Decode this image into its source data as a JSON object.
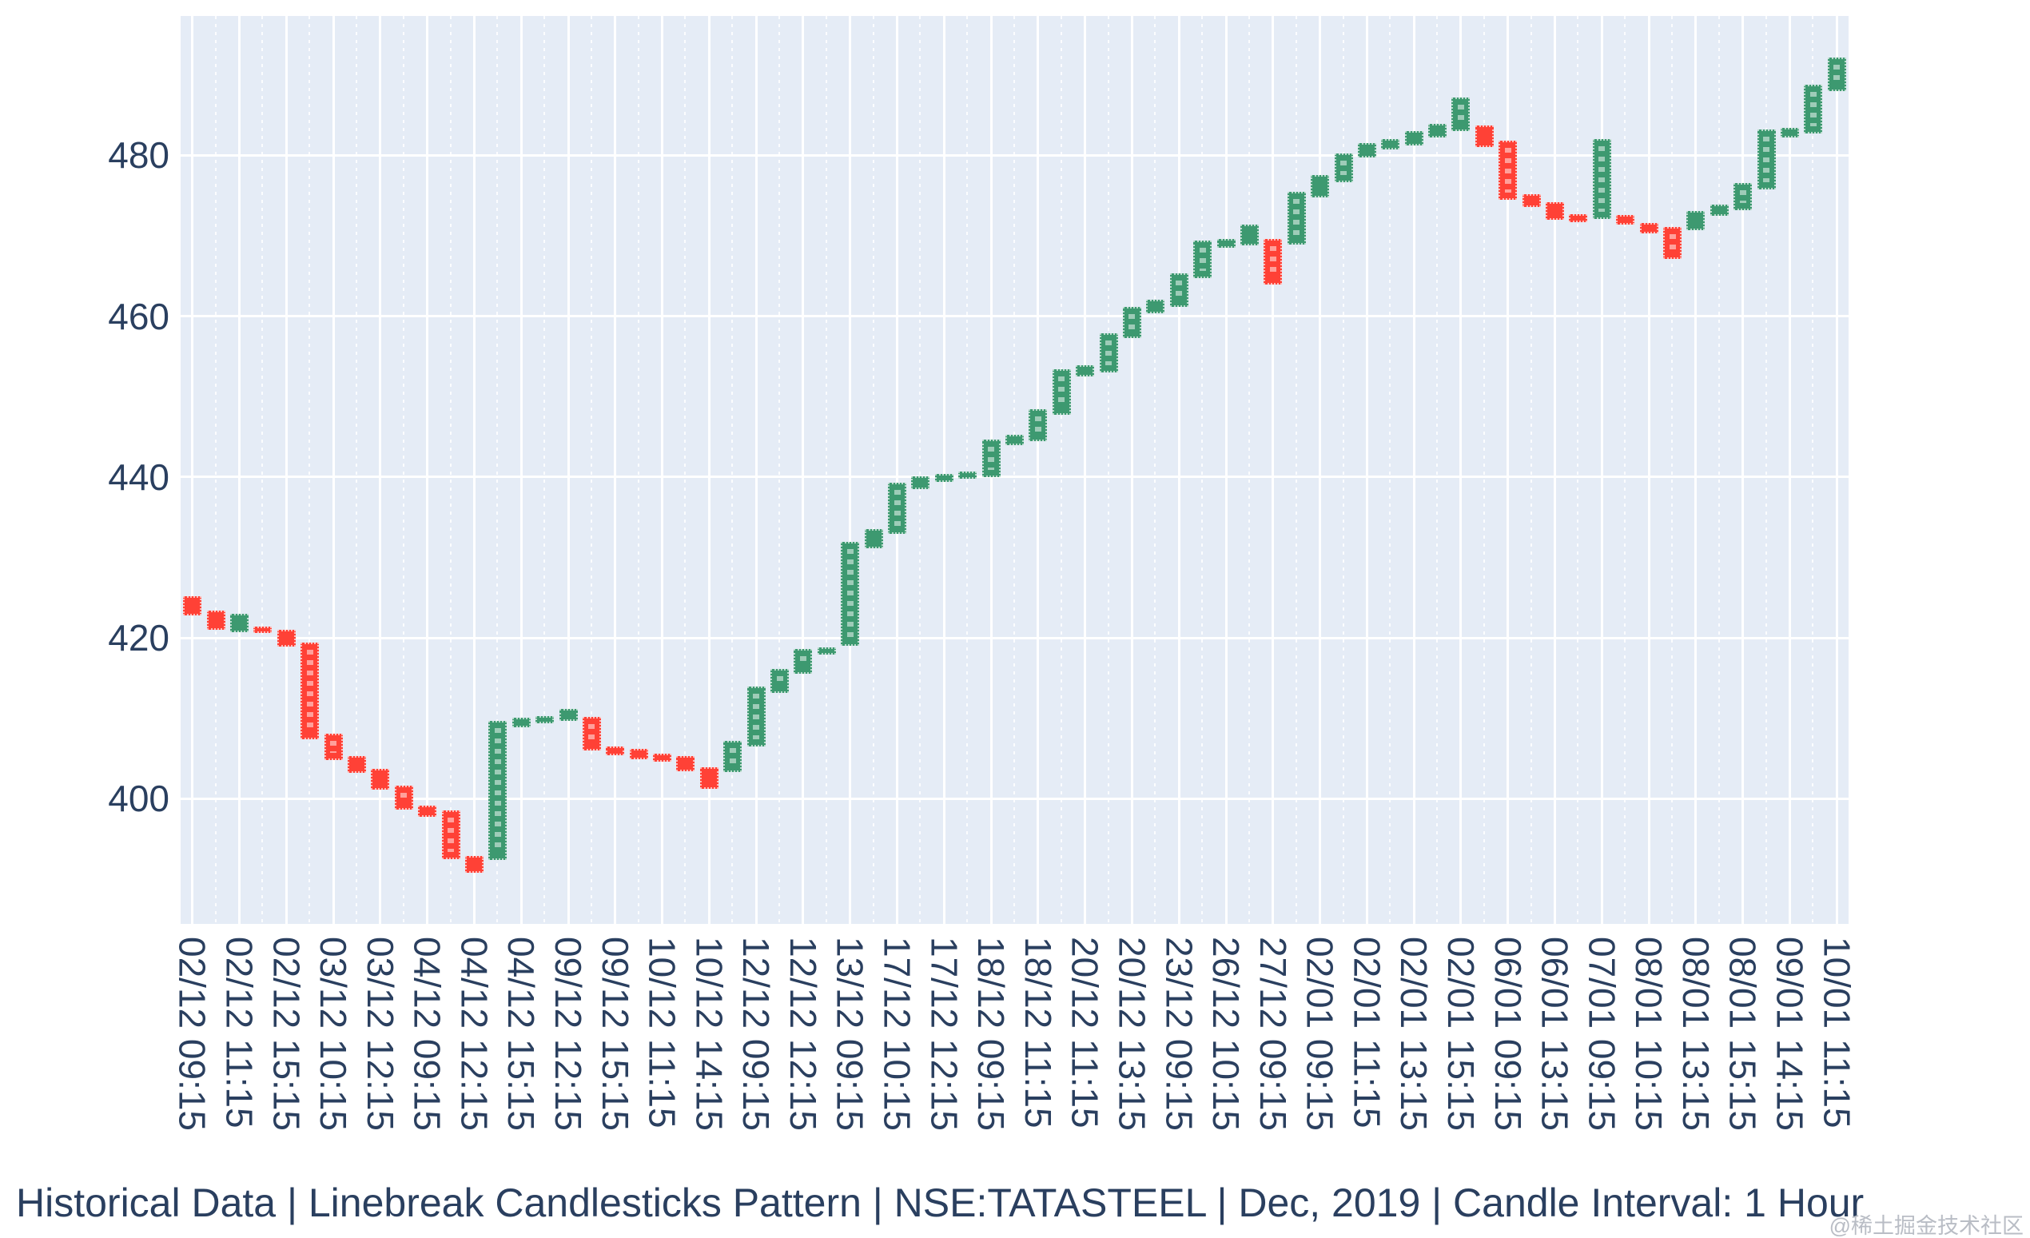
{
  "title": "Historical Data | Linebreak Candlesticks Pattern | NSE:TATASTEEL | Dec, 2019 | Candle Interval: 1 Hour",
  "watermark": "@稀土掘金技术社区",
  "colors": {
    "up": "#3D9970",
    "down": "#FF4136",
    "plot_bg": "#E5ECF6",
    "grid": "#ffffff",
    "text": "#2a3f5f",
    "watermark": "#b9bdc5"
  },
  "y_axis": {
    "ticks": [
      400,
      420,
      440,
      460,
      480
    ]
  },
  "x_axis": {
    "labels": [
      "02/12 09:15",
      "02/12 11:15",
      "02/12 15:15",
      "03/12 10:15",
      "03/12 12:15",
      "04/12 09:15",
      "04/12 12:15",
      "04/12 15:15",
      "09/12 12:15",
      "09/12 15:15",
      "10/12 11:15",
      "10/12 14:15",
      "12/12 09:15",
      "12/12 12:15",
      "13/12 09:15",
      "17/12 10:15",
      "17/12 12:15",
      "18/12 09:15",
      "18/12 11:15",
      "20/12 11:15",
      "20/12 13:15",
      "23/12 09:15",
      "26/12 10:15",
      "27/12 09:15",
      "02/01 09:15",
      "02/01 11:15",
      "02/01 13:15",
      "02/01 15:15",
      "06/01 09:15",
      "06/01 13:15",
      "07/01 09:15",
      "08/01 10:15",
      "08/01 13:15",
      "08/01 15:15",
      "09/01 14:15",
      "10/01 11:15"
    ]
  },
  "chart_data": {
    "type": "candlestick-linebreak",
    "title": "Historical Data | Linebreak Candlesticks Pattern | NSE:TATASTEEL | Dec, 2019 | Candle Interval: 1 Hour",
    "ylim": [
      385,
      497.5
    ],
    "grid": true,
    "label_every_n_candles": 2,
    "tick_labels": [
      "02/12 09:15",
      "02/12 11:15",
      "02/12 15:15",
      "03/12 10:15",
      "03/12 12:15",
      "04/12 09:15",
      "04/12 12:15",
      "04/12 15:15",
      "09/12 12:15",
      "09/12 15:15",
      "10/12 11:15",
      "10/12 14:15",
      "12/12 09:15",
      "12/12 12:15",
      "13/12 09:15",
      "17/12 10:15",
      "17/12 12:15",
      "18/12 09:15",
      "18/12 11:15",
      "20/12 11:15",
      "20/12 13:15",
      "23/12 09:15",
      "26/12 10:15",
      "27/12 09:15",
      "02/01 09:15",
      "02/01 11:15",
      "02/01 13:15",
      "02/01 15:15",
      "06/01 09:15",
      "06/01 13:15",
      "07/01 09:15",
      "08/01 10:15",
      "08/01 13:15",
      "08/01 15:15",
      "09/01 14:15",
      "10/01 11:15"
    ],
    "candles_open_close": [
      [
        425.2,
        422.8
      ],
      [
        423.4,
        421.0
      ],
      [
        420.7,
        423.0
      ],
      [
        421.4,
        420.6
      ],
      [
        421.0,
        418.9
      ],
      [
        419.4,
        407.4
      ],
      [
        408.1,
        404.8
      ],
      [
        405.3,
        403.2
      ],
      [
        403.7,
        401.1
      ],
      [
        401.6,
        398.6
      ],
      [
        399.1,
        397.7
      ],
      [
        398.5,
        392.5
      ],
      [
        392.9,
        390.8
      ],
      [
        392.4,
        409.7
      ],
      [
        408.9,
        410.1
      ],
      [
        409.4,
        410.3
      ],
      [
        409.7,
        411.2
      ],
      [
        410.2,
        406.0
      ],
      [
        406.5,
        405.4
      ],
      [
        406.2,
        404.9
      ],
      [
        405.6,
        404.6
      ],
      [
        405.3,
        403.4
      ],
      [
        403.9,
        401.2
      ],
      [
        403.3,
        407.2
      ],
      [
        406.5,
        413.9
      ],
      [
        413.1,
        416.1
      ],
      [
        415.5,
        418.6
      ],
      [
        417.9,
        418.8
      ],
      [
        419.0,
        431.9
      ],
      [
        431.1,
        433.5
      ],
      [
        432.9,
        439.3
      ],
      [
        438.5,
        440.1
      ],
      [
        439.4,
        440.4
      ],
      [
        439.8,
        440.7
      ],
      [
        440.0,
        444.7
      ],
      [
        444.0,
        445.2
      ],
      [
        444.5,
        448.4
      ],
      [
        447.7,
        453.4
      ],
      [
        452.5,
        453.9
      ],
      [
        453.0,
        457.9
      ],
      [
        457.3,
        461.2
      ],
      [
        460.4,
        462.0
      ],
      [
        461.2,
        465.3
      ],
      [
        464.7,
        469.4
      ],
      [
        468.5,
        469.6
      ],
      [
        468.8,
        471.4
      ],
      [
        469.6,
        463.9
      ],
      [
        468.9,
        475.5
      ],
      [
        474.8,
        477.6
      ],
      [
        476.7,
        480.2
      ],
      [
        479.7,
        481.5
      ],
      [
        480.7,
        482.0
      ],
      [
        481.2,
        483.0
      ],
      [
        482.2,
        483.9
      ],
      [
        483.0,
        487.2
      ],
      [
        483.7,
        481.0
      ],
      [
        481.8,
        474.5
      ],
      [
        475.2,
        473.6
      ],
      [
        474.2,
        472.0
      ],
      [
        472.7,
        471.7
      ],
      [
        472.1,
        482.0
      ],
      [
        472.6,
        471.4
      ],
      [
        471.6,
        470.3
      ],
      [
        471.1,
        467.1
      ],
      [
        470.7,
        473.1
      ],
      [
        472.5,
        473.9
      ],
      [
        473.2,
        476.6
      ],
      [
        475.8,
        483.2
      ],
      [
        482.2,
        483.4
      ],
      [
        482.7,
        488.8
      ],
      [
        488.0,
        492.2
      ]
    ]
  }
}
